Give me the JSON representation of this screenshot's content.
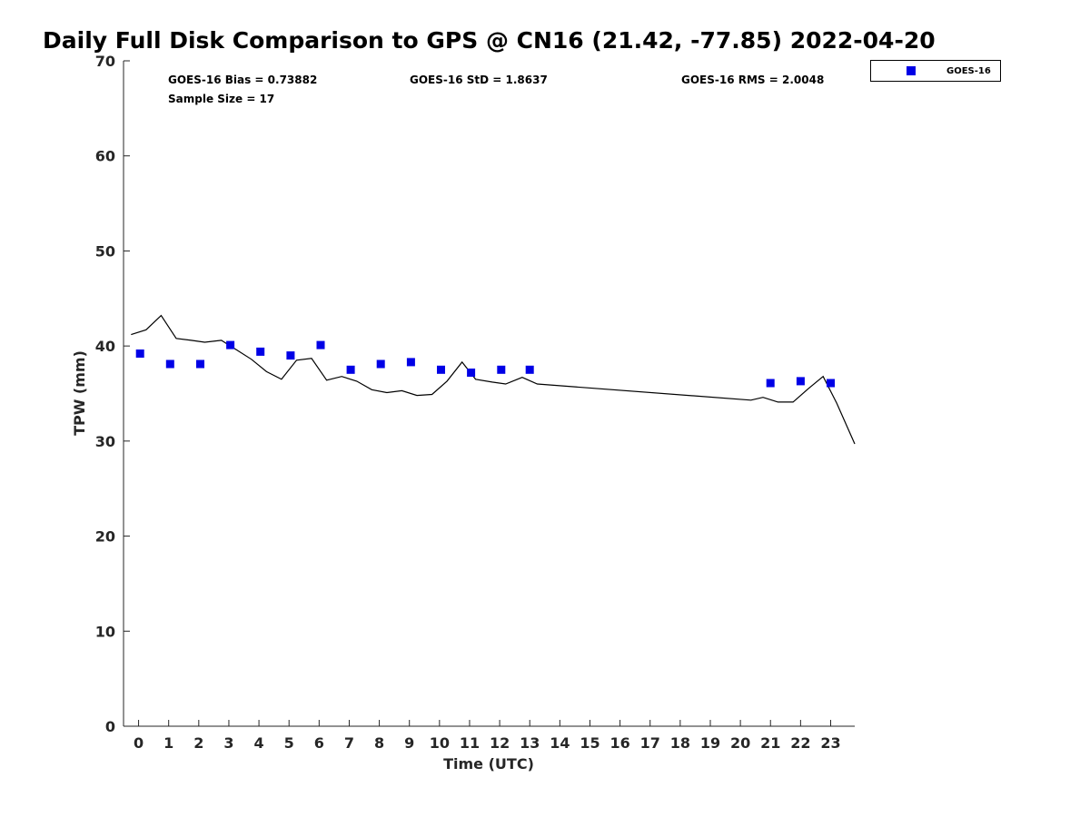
{
  "chart_data": {
    "type": "scatter",
    "title": "Daily Full Disk Comparison to GPS @ CN16 (21.42, -77.85) 2022-04-20",
    "xlabel": "Time (UTC)",
    "ylabel": "TPW (mm)",
    "xlim": [
      -0.5,
      23.8
    ],
    "ylim": [
      0,
      70
    ],
    "xticks": [
      "0",
      "1",
      "2",
      "3",
      "4",
      "5",
      "6",
      "7",
      "8",
      "9",
      "10",
      "11",
      "12",
      "13",
      "14",
      "15",
      "16",
      "17",
      "18",
      "19",
      "20",
      "21",
      "22",
      "23"
    ],
    "yticks": [
      "0",
      "10",
      "20",
      "30",
      "40",
      "50",
      "60",
      "70"
    ],
    "grid": false,
    "legend_position": "top-right, outside plot",
    "stats": {
      "bias": "GOES-16 Bias = 0.73882",
      "std": "GOES-16 StD = 1.8637",
      "rms": "GOES-16 RMS = 2.0048",
      "sample": "Sample Size = 17"
    },
    "series": [
      {
        "name": "GOES-16",
        "kind": "scatter",
        "marker": "square",
        "color": "#0000e6",
        "x": [
          0.05,
          1.05,
          2.05,
          3.05,
          4.05,
          5.05,
          6.05,
          7.05,
          8.05,
          9.05,
          10.05,
          11.05,
          12.05,
          13.0,
          21.0,
          22.0,
          23.0
        ],
        "y": [
          39.2,
          38.1,
          38.1,
          40.1,
          39.4,
          39.0,
          40.1,
          37.5,
          38.1,
          38.3,
          37.5,
          37.2,
          37.5,
          37.5,
          36.1,
          36.3,
          36.1
        ]
      },
      {
        "kind": "line",
        "color": "#000000",
        "x": [
          -0.25,
          0.25,
          0.75,
          1.25,
          1.75,
          2.2,
          2.75,
          3.25,
          3.75,
          4.25,
          4.75,
          5.25,
          5.75,
          6.25,
          6.75,
          7.25,
          7.75,
          8.25,
          8.75,
          9.25,
          9.75,
          10.25,
          10.75,
          11.2,
          11.75,
          12.2,
          12.75,
          13.25,
          20.35,
          20.75,
          21.25,
          21.75,
          22.25,
          22.75,
          23.2,
          23.8
        ],
        "y": [
          41.2,
          41.7,
          43.2,
          40.8,
          40.6,
          40.4,
          40.6,
          39.6,
          38.6,
          37.3,
          36.5,
          38.5,
          38.7,
          36.4,
          36.8,
          36.3,
          35.4,
          35.1,
          35.3,
          34.8,
          34.9,
          36.3,
          38.3,
          36.5,
          36.2,
          36.0,
          36.7,
          36.0,
          34.3,
          34.6,
          34.1,
          34.1,
          35.5,
          36.8,
          34.0,
          29.7
        ]
      }
    ]
  }
}
